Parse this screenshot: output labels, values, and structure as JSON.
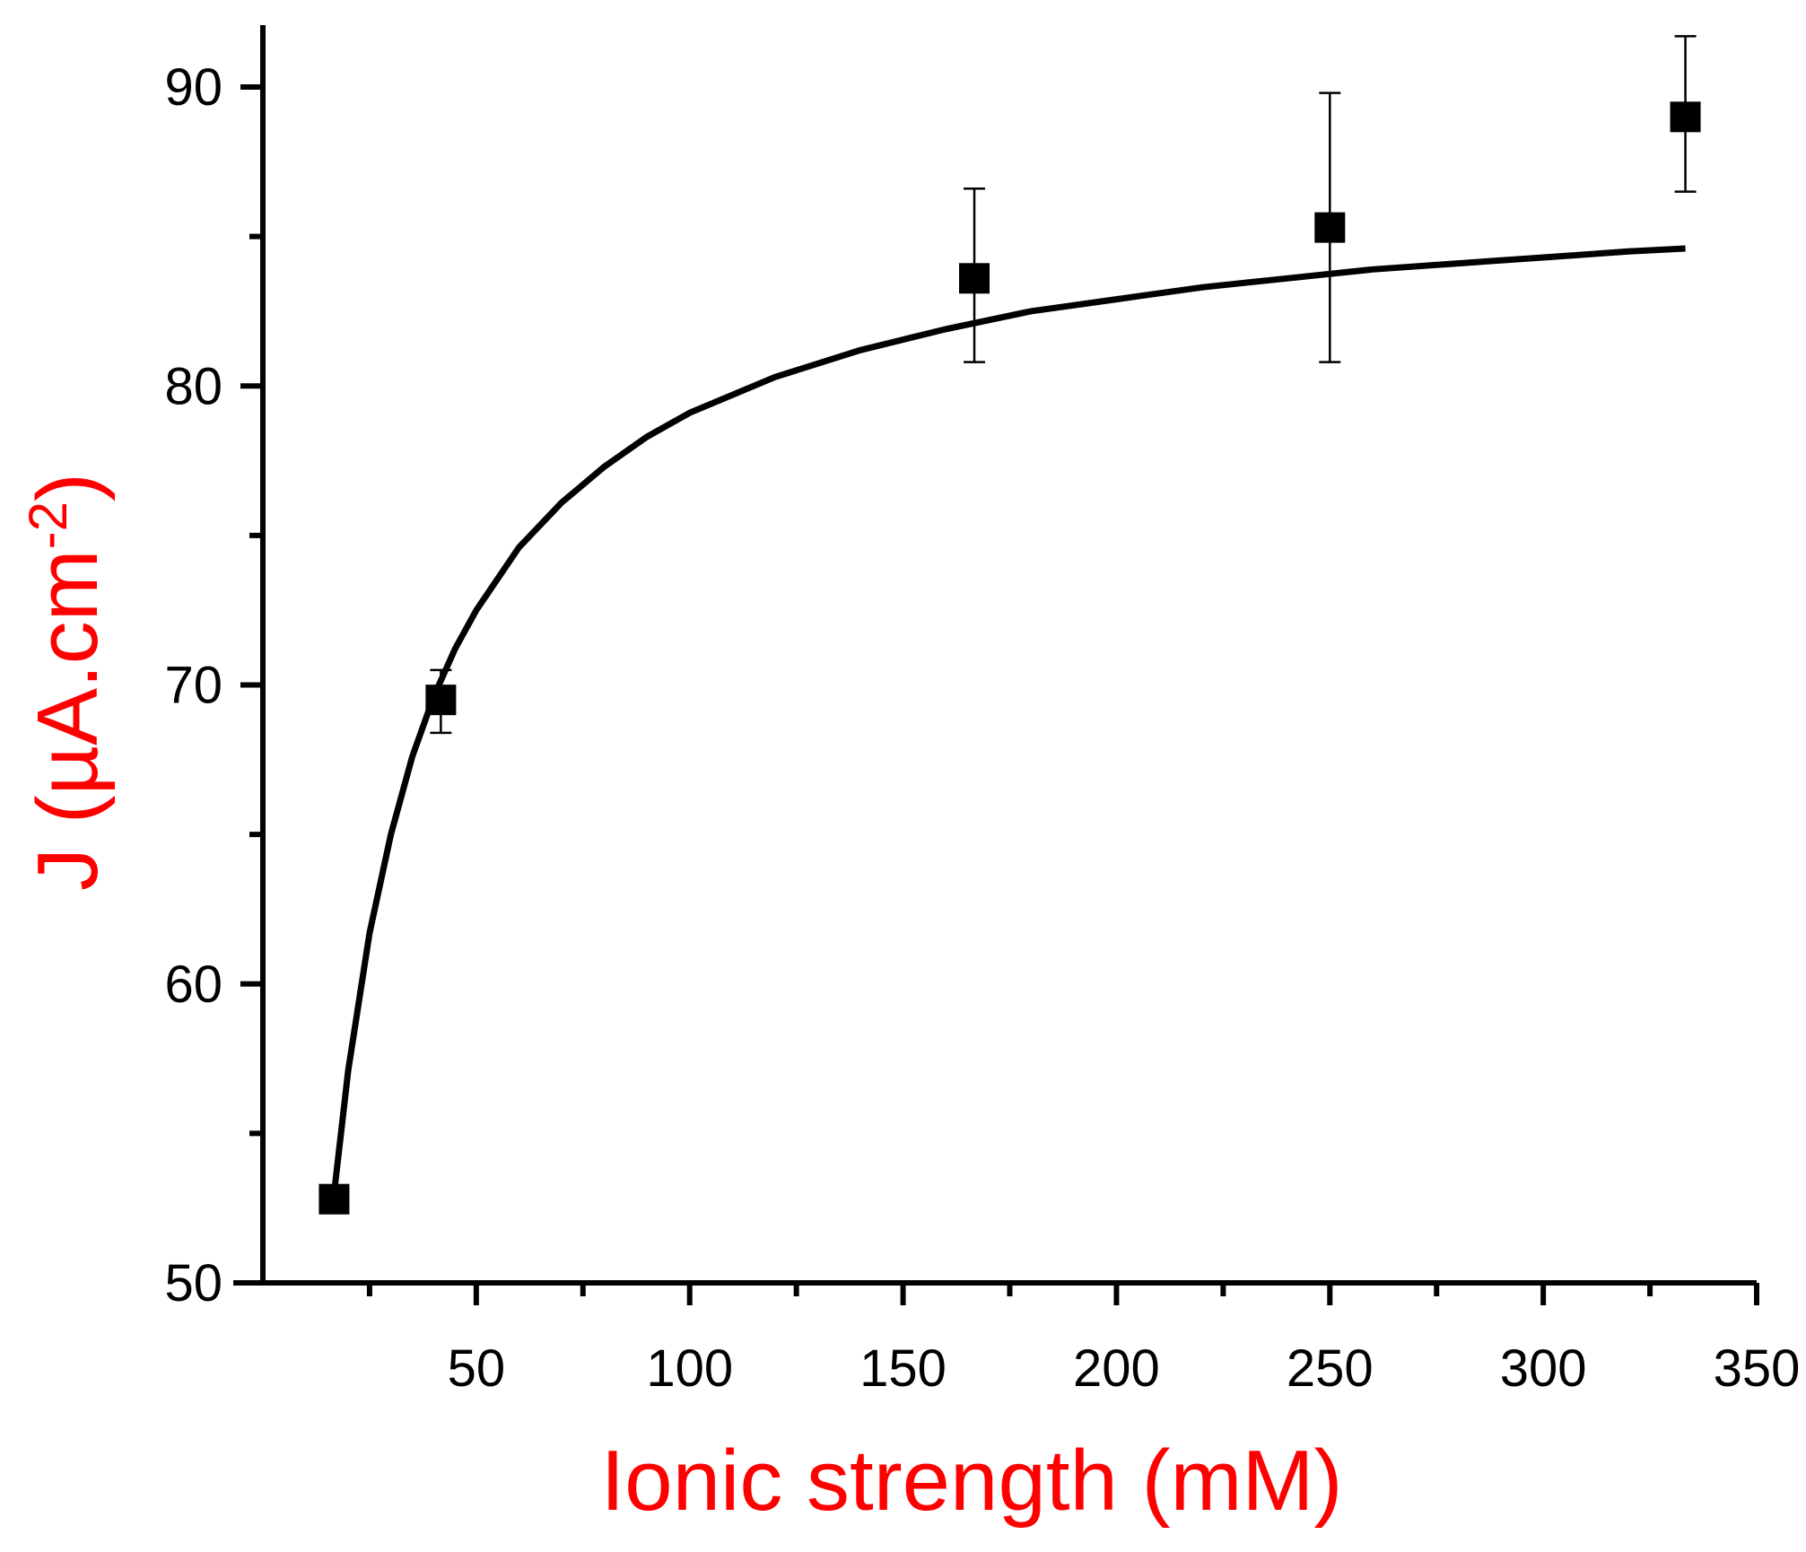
{
  "chart_data": {
    "type": "scatter",
    "title": "",
    "xlabel": "Ionic strength (mM)",
    "ylabel_main": "J (µA.cm",
    "ylabel_sup": "-2",
    "ylabel_close": ")",
    "label_color": "#ff0000",
    "xlim": [
      0,
      350
    ],
    "ylim": [
      50,
      92
    ],
    "x_ticks": [
      50,
      100,
      150,
      200,
      250,
      300,
      350
    ],
    "x_tick_labels": [
      "50",
      "100",
      "150",
      "200",
      "250",
      "300",
      "350"
    ],
    "x_minor_ticks": [
      25,
      75,
      125,
      175,
      225,
      275,
      325
    ],
    "y_ticks": [
      50,
      60,
      70,
      80,
      90
    ],
    "y_tick_labels": [
      "50",
      "60",
      "70",
      "80",
      "90"
    ],
    "y_minor_ticks": [
      55,
      65,
      75,
      85
    ],
    "grid": false,
    "series": [
      {
        "x": [
          16.7,
          41.7,
          166.7,
          250,
          333.3
        ],
        "y": [
          52.8,
          69.5,
          83.6,
          85.3,
          89.0
        ],
        "error": [
          [
            52.6,
            53.0
          ],
          [
            68.4,
            70.5
          ],
          [
            80.8,
            86.6
          ],
          [
            80.8,
            89.8
          ],
          [
            86.5,
            91.7
          ]
        ]
      }
    ],
    "fit": {
      "x": [
        16.7,
        20,
        25,
        30,
        35,
        40,
        45,
        50,
        60,
        70,
        80,
        90,
        100,
        120,
        140,
        160,
        180,
        200,
        220,
        240,
        260,
        280,
        300,
        320,
        333.3
      ],
      "y": [
        53.0,
        57.1,
        61.7,
        65.0,
        67.6,
        69.6,
        71.2,
        72.5,
        74.6,
        76.1,
        77.3,
        78.3,
        79.1,
        80.3,
        81.2,
        81.9,
        82.5,
        82.9,
        83.3,
        83.6,
        83.9,
        84.1,
        84.3,
        84.5,
        84.6
      ]
    }
  }
}
